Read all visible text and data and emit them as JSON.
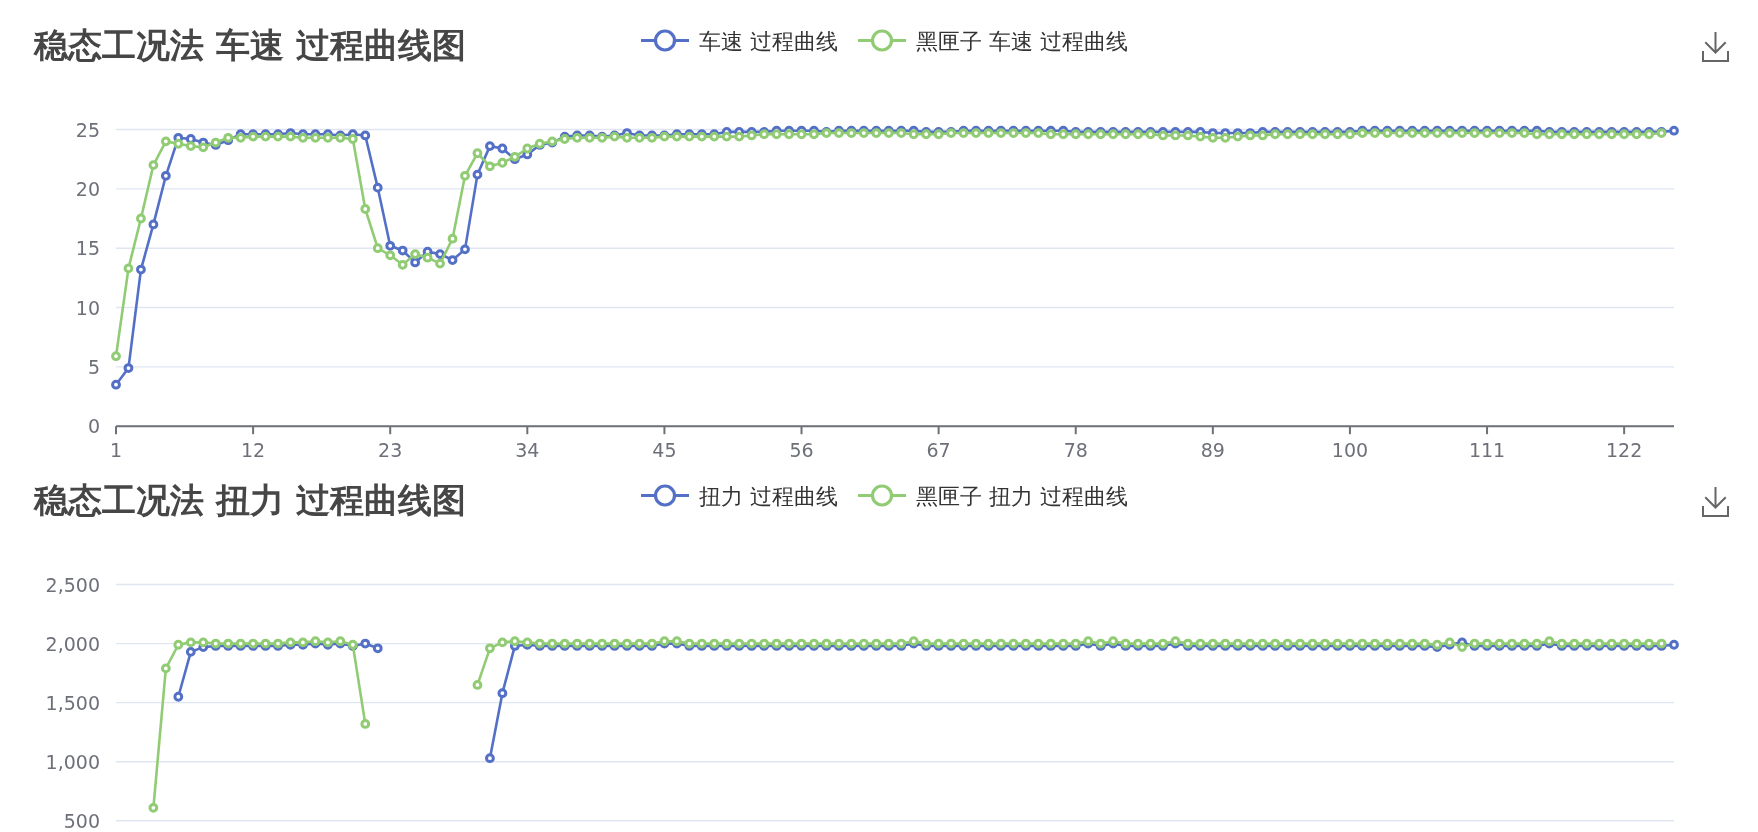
{
  "chart_data": [
    {
      "type": "line",
      "title": "稳态工况法 车速 过程曲线图",
      "categories": [
        "1",
        null,
        null,
        null,
        null,
        null,
        null,
        null,
        null,
        null,
        null,
        "12",
        null,
        null,
        null,
        null,
        null,
        null,
        null,
        null,
        null,
        null,
        "23",
        null,
        null,
        null,
        null,
        null,
        null,
        null,
        null,
        null,
        null,
        "34",
        null,
        null,
        null,
        null,
        null,
        null,
        null,
        null,
        null,
        null,
        "45",
        null,
        null,
        null,
        null,
        null,
        null,
        null,
        null,
        null,
        null,
        "56",
        null,
        null,
        null,
        null,
        null,
        null,
        null,
        null,
        null,
        null,
        "67",
        null,
        null,
        null,
        null,
        null,
        null,
        null,
        null,
        null,
        null,
        "78",
        null,
        null,
        null,
        null,
        null,
        null,
        null,
        null,
        null,
        null,
        "89",
        null,
        null,
        null,
        null,
        null,
        null,
        null,
        null,
        null,
        null,
        "100",
        null,
        null,
        null,
        null,
        null,
        null,
        null,
        null,
        null,
        null,
        "111",
        null,
        null,
        null,
        null,
        null,
        null,
        null,
        null,
        null,
        null,
        "122",
        null,
        null,
        null,
        null
      ],
      "series": [
        {
          "name": "车速 过程曲线",
          "color": "#5470c6",
          "values": [
            3.5,
            4.9,
            13.2,
            17.0,
            21.1,
            24.3,
            24.2,
            23.9,
            23.7,
            24.1,
            24.6,
            24.6,
            24.6,
            24.6,
            24.7,
            24.6,
            24.6,
            24.6,
            24.5,
            24.6,
            24.5,
            20.1,
            15.2,
            14.8,
            13.8,
            14.7,
            14.5,
            14.0,
            14.9,
            21.2,
            23.6,
            23.4,
            22.5,
            22.9,
            23.7,
            23.9,
            24.4,
            24.5,
            24.5,
            24.4,
            24.5,
            24.7,
            24.5,
            24.5,
            24.5,
            24.6,
            24.6,
            24.6,
            24.6,
            24.8,
            24.8,
            24.8,
            24.8,
            24.9,
            24.9,
            24.9,
            24.9,
            24.8,
            24.9,
            24.9,
            24.9,
            24.9,
            24.9,
            24.9,
            24.9,
            24.8,
            24.8,
            24.8,
            24.9,
            24.9,
            24.9,
            24.9,
            24.9,
            24.9,
            24.9,
            24.9,
            24.9,
            24.8,
            24.8,
            24.8,
            24.8,
            24.8,
            24.8,
            24.8,
            24.8,
            24.8,
            24.8,
            24.8,
            24.7,
            24.7,
            24.7,
            24.7,
            24.8,
            24.8,
            24.8,
            24.8,
            24.8,
            24.8,
            24.8,
            24.8,
            24.9,
            24.9,
            24.9,
            24.9,
            24.9,
            24.9,
            24.9,
            24.9,
            24.9,
            24.9,
            24.9,
            24.9,
            24.9,
            24.9,
            24.9,
            24.8,
            24.8,
            24.8,
            24.8,
            24.8,
            24.8,
            24.8,
            24.8,
            24.8,
            24.8,
            24.9
          ]
        },
        {
          "name": "黑匣子 车速 过程曲线",
          "color": "#91cc75",
          "values": [
            5.9,
            13.3,
            17.5,
            22.0,
            24.0,
            23.8,
            23.6,
            23.5,
            23.9,
            24.3,
            24.3,
            24.4,
            24.4,
            24.4,
            24.4,
            24.3,
            24.3,
            24.3,
            24.3,
            24.2,
            18.3,
            15.0,
            14.4,
            13.6,
            14.5,
            14.2,
            13.7,
            15.8,
            21.1,
            23.0,
            21.9,
            22.2,
            22.7,
            23.4,
            23.8,
            24.0,
            24.2,
            24.3,
            24.3,
            24.3,
            24.4,
            24.3,
            24.3,
            24.3,
            24.4,
            24.4,
            24.4,
            24.4,
            24.4,
            24.4,
            24.4,
            24.5,
            24.6,
            24.6,
            24.6,
            24.6,
            24.6,
            24.7,
            24.7,
            24.7,
            24.7,
            24.7,
            24.7,
            24.7,
            24.6,
            24.6,
            24.6,
            24.7,
            24.7,
            24.7,
            24.7,
            24.7,
            24.7,
            24.7,
            24.7,
            24.6,
            24.6,
            24.6,
            24.6,
            24.6,
            24.6,
            24.6,
            24.6,
            24.6,
            24.5,
            24.5,
            24.5,
            24.4,
            24.3,
            24.3,
            24.4,
            24.5,
            24.5,
            24.6,
            24.6,
            24.6,
            24.6,
            24.6,
            24.6,
            24.6,
            24.7,
            24.7,
            24.7,
            24.7,
            24.7,
            24.7,
            24.7,
            24.7,
            24.7,
            24.7,
            24.7,
            24.7,
            24.7,
            24.7,
            24.6,
            24.6,
            24.6,
            24.6,
            24.6,
            24.6,
            24.6,
            24.6,
            24.6,
            24.6,
            24.7,
            null
          ]
        }
      ],
      "ylim": [
        0,
        25
      ],
      "yticks": [
        0,
        5,
        10,
        15,
        20,
        25
      ],
      "grid": "y",
      "legend": "top",
      "marker": "circle"
    },
    {
      "type": "line",
      "title": "稳态工况法 扭力 过程曲线图",
      "categories": [
        null,
        null,
        null,
        null,
        null,
        null,
        null,
        null,
        null,
        null,
        null,
        null,
        null,
        null,
        null,
        null,
        null,
        null,
        null,
        null,
        null,
        null,
        null,
        null,
        null,
        null,
        null,
        null,
        null,
        null,
        null,
        null,
        null,
        null,
        null,
        null,
        null,
        null,
        null,
        null,
        null,
        null,
        null,
        null,
        null,
        null,
        null,
        null,
        null,
        null,
        null,
        null,
        null,
        null,
        null,
        null,
        null,
        null,
        null,
        null,
        null,
        null,
        null,
        null,
        null,
        null,
        null,
        null,
        null,
        null,
        null,
        null,
        null,
        null,
        null,
        null,
        null,
        null,
        null,
        null,
        null,
        null,
        null,
        null,
        null,
        null,
        null,
        null,
        null,
        null,
        null,
        null,
        null,
        null,
        null,
        null,
        null,
        null,
        null,
        null,
        null,
        null,
        null,
        null,
        null,
        null,
        null,
        null,
        null,
        null,
        null,
        null,
        null,
        null,
        null,
        null,
        null,
        null,
        null,
        null,
        null,
        null,
        null,
        null,
        null,
        null
      ],
      "series": [
        {
          "name": "扭力 过程曲线",
          "color": "#5470c6",
          "values": [
            null,
            null,
            null,
            null,
            null,
            1550,
            1930,
            1970,
            1980,
            1980,
            1980,
            1980,
            1980,
            1980,
            1990,
            1990,
            2000,
            1990,
            2000,
            1980,
            2000,
            1960,
            null,
            null,
            null,
            null,
            null,
            null,
            null,
            null,
            1030,
            1580,
            1980,
            1990,
            1980,
            1980,
            1980,
            1980,
            1980,
            1980,
            1980,
            1980,
            1980,
            1980,
            2000,
            2000,
            1980,
            1980,
            1980,
            1980,
            1980,
            1980,
            1980,
            1980,
            1980,
            1980,
            1980,
            1980,
            1980,
            1980,
            1980,
            1980,
            1980,
            1980,
            2000,
            1980,
            1980,
            1980,
            1980,
            1980,
            1980,
            1980,
            1980,
            1980,
            1980,
            1980,
            1980,
            1980,
            2000,
            1980,
            2000,
            1980,
            1980,
            1980,
            1980,
            2000,
            1980,
            1980,
            1980,
            1980,
            1980,
            1980,
            1980,
            1980,
            1980,
            1980,
            1980,
            1980,
            1980,
            1980,
            1980,
            1980,
            1980,
            1980,
            1980,
            1980,
            1970,
            1990,
            2010,
            1980,
            1980,
            1980,
            1980,
            1980,
            1980,
            2000,
            1980,
            1980,
            1980,
            1980,
            1980,
            1980,
            1980,
            1980,
            1980,
            1990
          ]
        },
        {
          "name": "黑匣子 扭力 过程曲线",
          "color": "#91cc75",
          "values": [
            null,
            null,
            null,
            610,
            1790,
            1990,
            2010,
            2010,
            2000,
            2000,
            2000,
            2000,
            2000,
            2000,
            2010,
            2010,
            2020,
            2010,
            2020,
            1990,
            1320,
            null,
            null,
            null,
            null,
            null,
            null,
            null,
            null,
            1650,
            1960,
            2010,
            2020,
            2010,
            2000,
            2000,
            2000,
            2000,
            2000,
            2000,
            2000,
            2000,
            2000,
            2000,
            2020,
            2020,
            2000,
            2000,
            2000,
            2000,
            2000,
            2000,
            2000,
            2000,
            2000,
            2000,
            2000,
            2000,
            2000,
            2000,
            2000,
            2000,
            2000,
            2000,
            2020,
            2000,
            2000,
            2000,
            2000,
            2000,
            2000,
            2000,
            2000,
            2000,
            2000,
            2000,
            2000,
            2000,
            2020,
            2000,
            2020,
            2000,
            2000,
            2000,
            2000,
            2020,
            2000,
            2000,
            2000,
            2000,
            2000,
            2000,
            2000,
            2000,
            2000,
            2000,
            2000,
            2000,
            2000,
            2000,
            2000,
            2000,
            2000,
            2000,
            2000,
            2000,
            1990,
            2010,
            1970,
            2000,
            2000,
            2000,
            2000,
            2000,
            2000,
            2020,
            2000,
            2000,
            2000,
            2000,
            2000,
            2000,
            2000,
            2000,
            2000,
            null
          ]
        }
      ],
      "ylim": [
        500,
        2500
      ],
      "yticks": [
        {
          "value": 500,
          "label": "500"
        },
        {
          "value": 1000,
          "label": "1,000"
        },
        {
          "value": 1500,
          "label": "1,500"
        },
        {
          "value": 2000,
          "label": "2,000"
        },
        {
          "value": 2500,
          "label": "2,500"
        }
      ],
      "grid": "y",
      "legend": "top",
      "marker": "circle"
    }
  ]
}
